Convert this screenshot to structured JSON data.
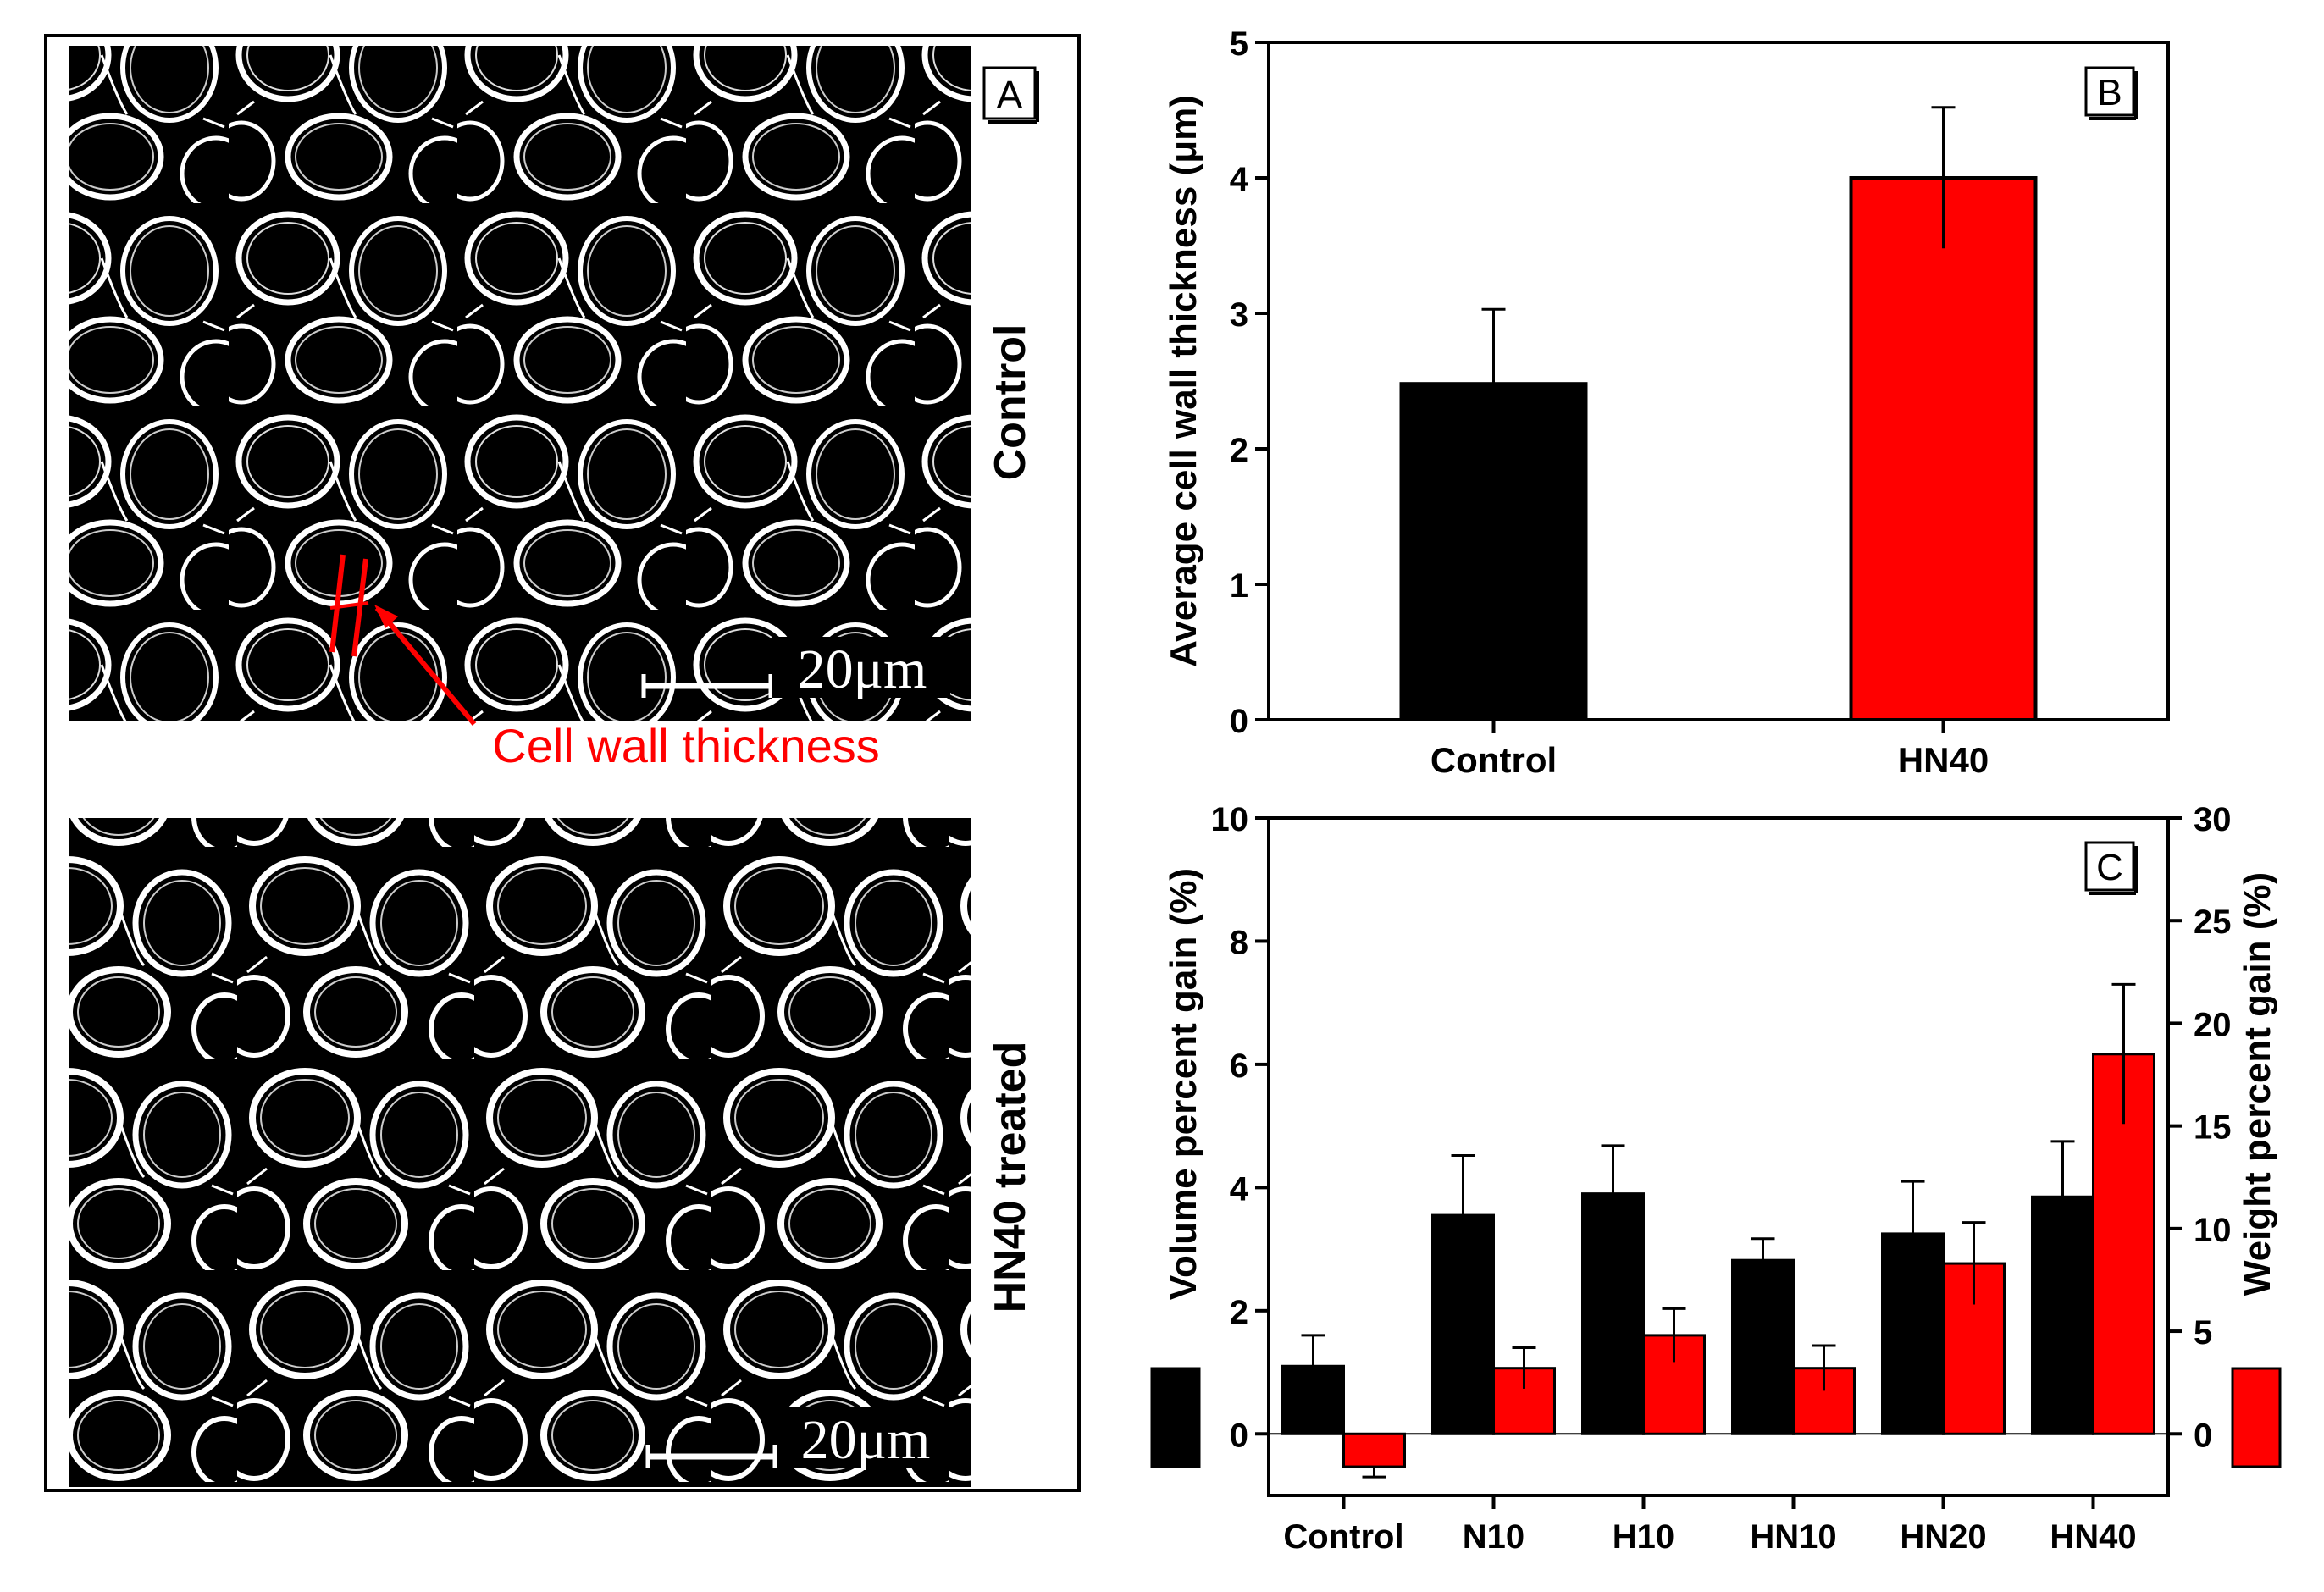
{
  "panel_a": {
    "label": "A",
    "top_caption": "Control",
    "bottom_caption": "HN40 treated",
    "scale_bar_text": "20μm",
    "annotation": "Cell wall thickness",
    "colors": {
      "annotation": "#ff0000",
      "micrograph_bg": "#000000",
      "cell_wall": "#ffffff"
    }
  },
  "chart_data": [
    {
      "panel_label": "B",
      "type": "bar",
      "categories": [
        "Control",
        "HN40"
      ],
      "values": [
        2.48,
        4.0
      ],
      "errors": [
        0.55,
        0.52
      ],
      "colors": [
        "#000000",
        "#ff0000"
      ],
      "ylabel": "Average cell wall thickness (μm)",
      "xlabel": "",
      "ylim": [
        0,
        5
      ],
      "yticks": [
        0,
        1,
        2,
        3,
        4,
        5
      ]
    },
    {
      "panel_label": "C",
      "type": "bar",
      "categories": [
        "Control",
        "N10",
        "H10",
        "HN10",
        "HN20",
        "HN40"
      ],
      "series": [
        {
          "name": "Volume percent gain",
          "axis": "left",
          "color": "#000000",
          "values": [
            1.1,
            3.55,
            3.9,
            2.82,
            3.25,
            3.85
          ],
          "errors": [
            0.5,
            0.97,
            0.78,
            0.35,
            0.85,
            0.9
          ]
        },
        {
          "name": "Weight percent gain",
          "axis": "right",
          "color": "#ff0000",
          "values": [
            -1.6,
            3.2,
            4.8,
            3.2,
            8.3,
            18.5
          ],
          "errors": [
            0.5,
            1.0,
            1.3,
            1.1,
            2.0,
            3.4
          ]
        }
      ],
      "ylabel_left": "Volume percent gain (%)",
      "ylabel_right": "Weight percent gain (%)",
      "ylim_left": [
        -1,
        10
      ],
      "yticks_left": [
        0,
        2,
        4,
        6,
        8,
        10
      ],
      "ylim_right": [
        -3,
        30
      ],
      "yticks_right": [
        0,
        5,
        10,
        15,
        20,
        25,
        30
      ]
    }
  ]
}
